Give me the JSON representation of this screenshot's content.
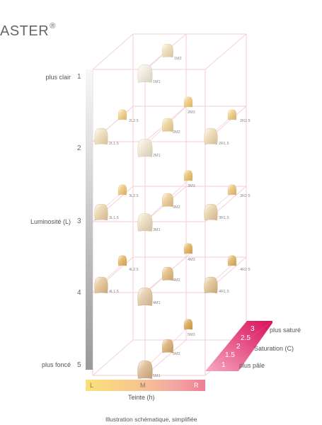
{
  "title": {
    "text": "ASTER",
    "mark": "®"
  },
  "luminosity": {
    "label": "Luminosité (L)",
    "top_label": "plus clair",
    "bottom_label": "plus foncé",
    "levels": [
      "1",
      "2",
      "3",
      "4",
      "5"
    ]
  },
  "hue": {
    "label": "Teinte (h)",
    "ticks": [
      "L",
      "M",
      "R"
    ]
  },
  "saturation": {
    "label": "Saturation (C)",
    "top_label": "plus saturé",
    "bottom_label": "plus pâle",
    "levels": [
      "1",
      "1.5",
      "2",
      "2.5",
      "3"
    ]
  },
  "footer": "Illustration schématique, simplifiée",
  "shades": [
    "1M2",
    "1M1",
    "2L2.5",
    "2M3",
    "2R2.5",
    "2M2",
    "2L1.5",
    "2R1.5",
    "2M1",
    "3L2.5",
    "3M3",
    "3R2.5",
    "3M2",
    "3L1.5",
    "3R1.5",
    "3M1",
    "4L2.5",
    "4M3",
    "4R2.5",
    "4M2",
    "4L1.5",
    "4R1.5",
    "4M1",
    "5M3",
    "5M2",
    "5M1"
  ],
  "colors": {
    "grid": "#f4c6cf",
    "hue_start": "#fbe07a",
    "hue_end": "#ef7e93",
    "saturation_accent": "#d80f5c"
  }
}
